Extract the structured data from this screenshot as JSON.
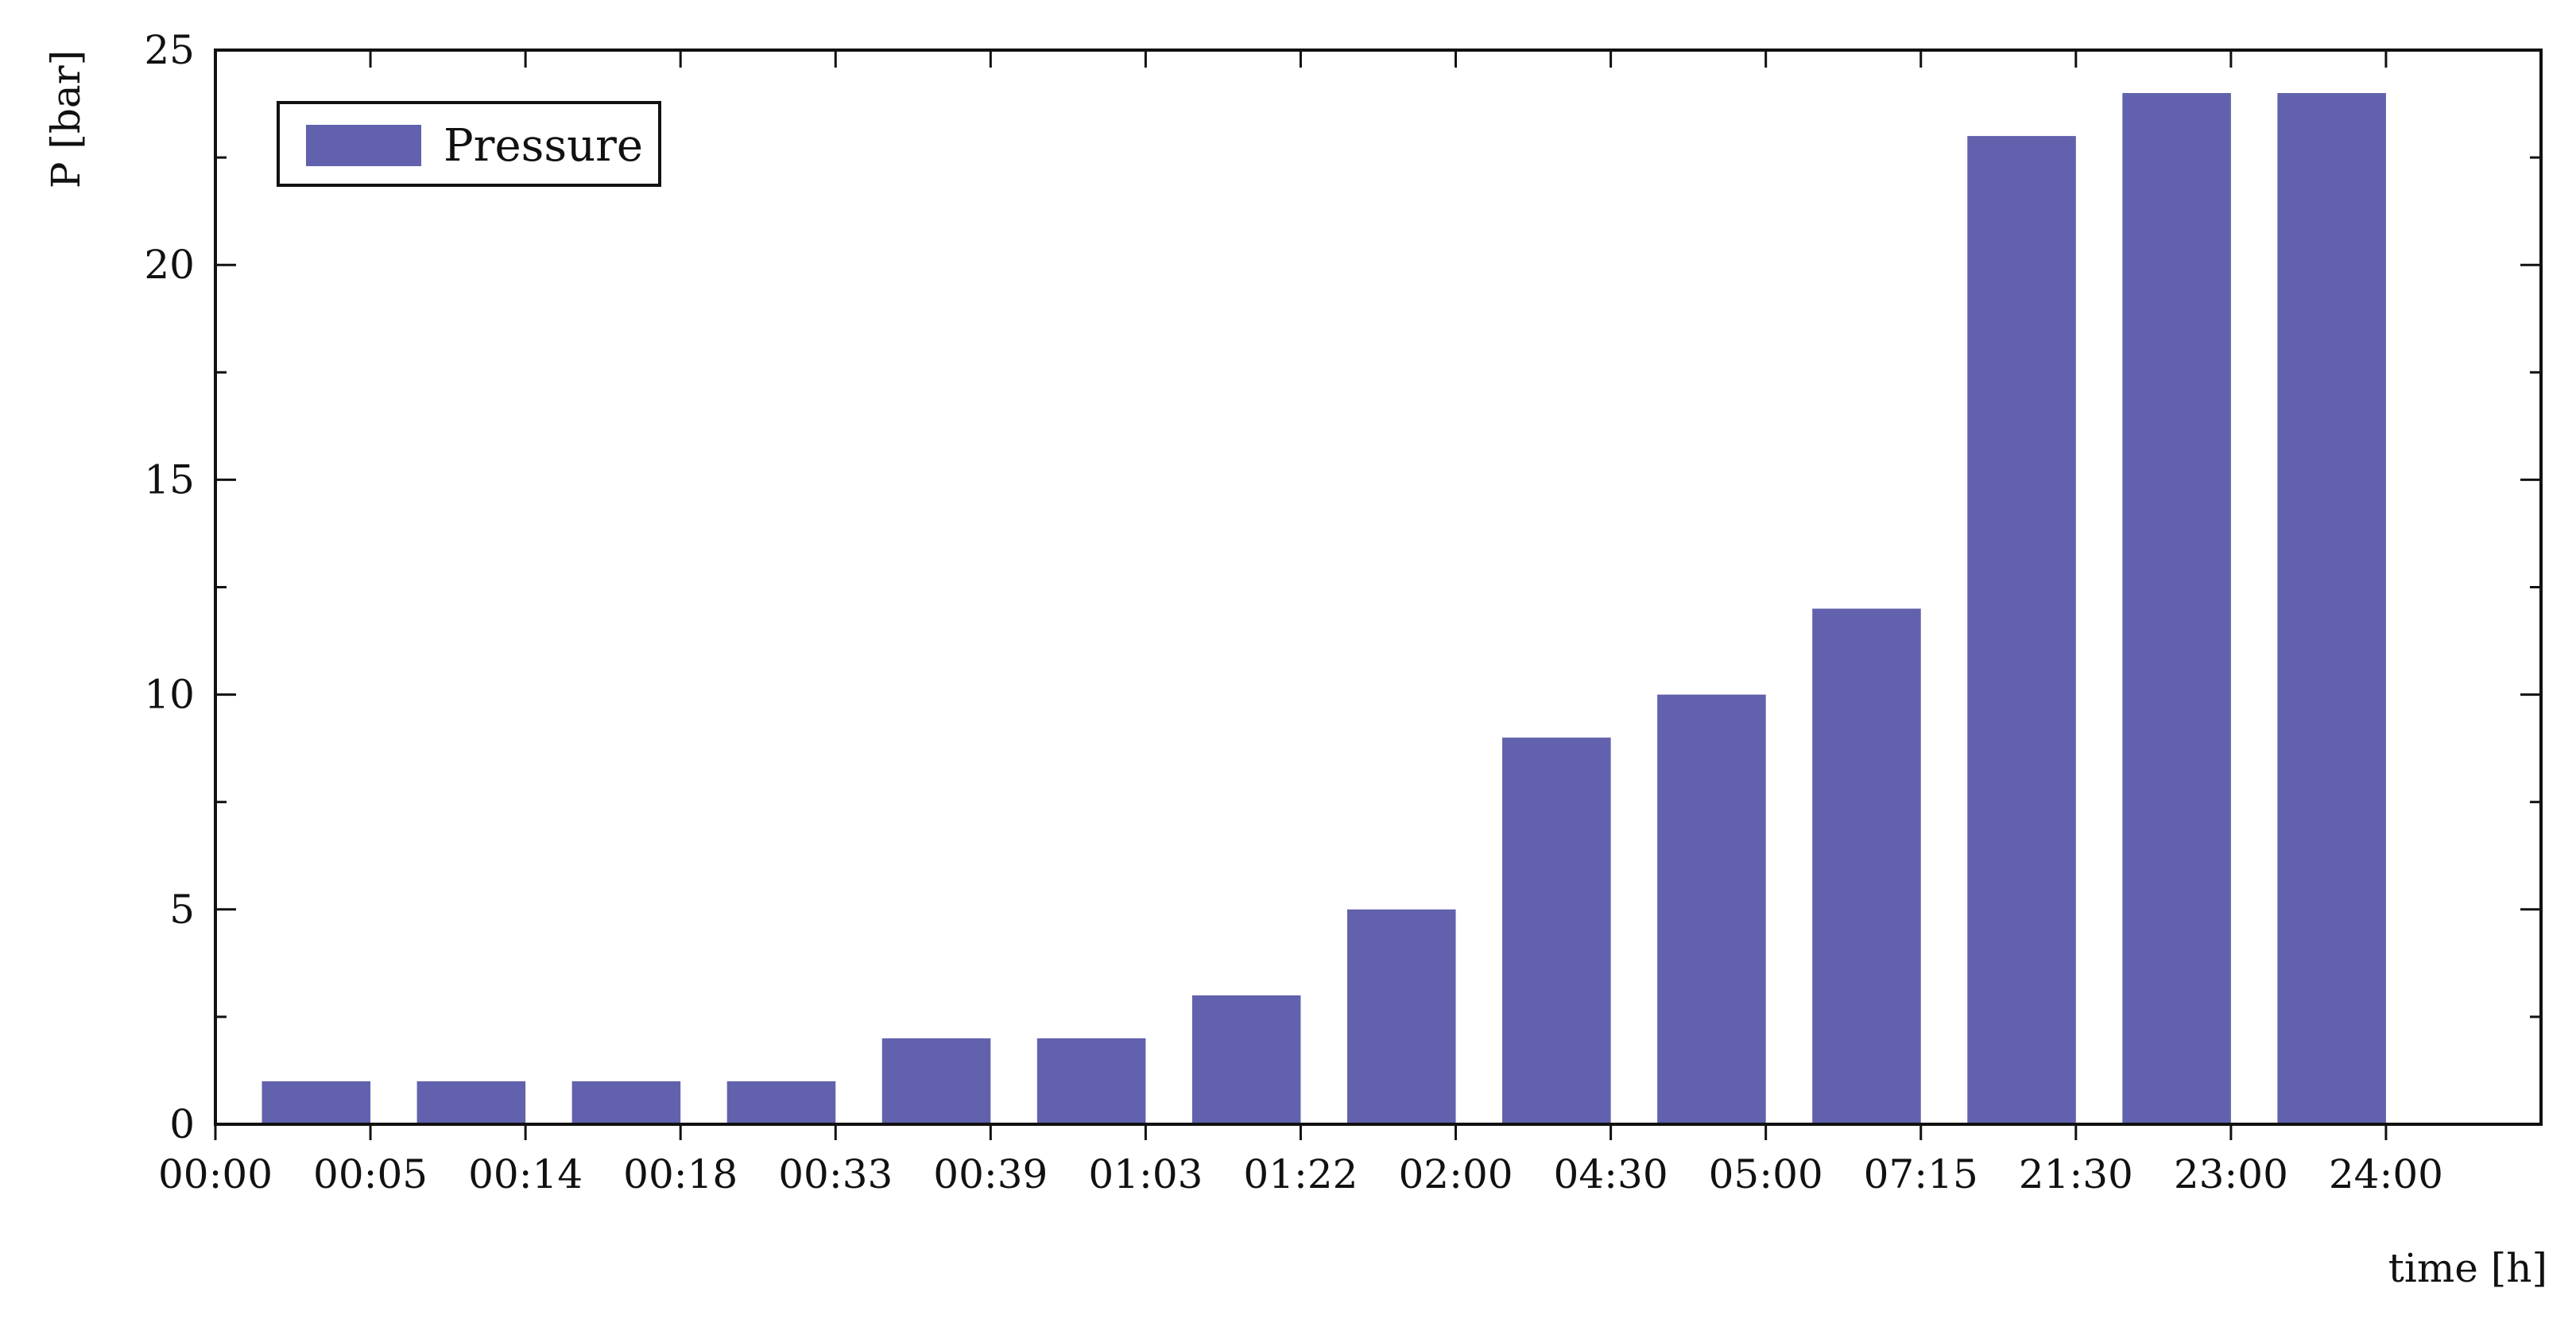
{
  "chart_data": {
    "type": "bar",
    "xlabel": "time [h]",
    "ylabel": "P [bar]",
    "ylim": [
      0,
      25
    ],
    "yticks": [
      0,
      5,
      10,
      15,
      20,
      25
    ],
    "xticks": [
      "00:00",
      "00:05",
      "00:14",
      "00:18",
      "00:33",
      "00:39",
      "01:03",
      "01:22",
      "02:00",
      "04:30",
      "05:00",
      "07:15",
      "21:30",
      "23:00",
      "24:00"
    ],
    "categories": [
      "00:05",
      "00:14",
      "00:18",
      "00:33",
      "00:39",
      "01:03",
      "01:22",
      "02:00",
      "04:30",
      "05:00",
      "07:15",
      "21:30",
      "23:00",
      "24:00"
    ],
    "series": [
      {
        "name": "Pressure",
        "color": "#6161ad",
        "values": [
          1,
          1,
          1,
          1,
          2,
          2,
          3,
          5,
          9,
          10,
          12,
          23,
          24,
          24
        ]
      }
    ],
    "legend": {
      "position": "top-left"
    },
    "grid": false
  }
}
